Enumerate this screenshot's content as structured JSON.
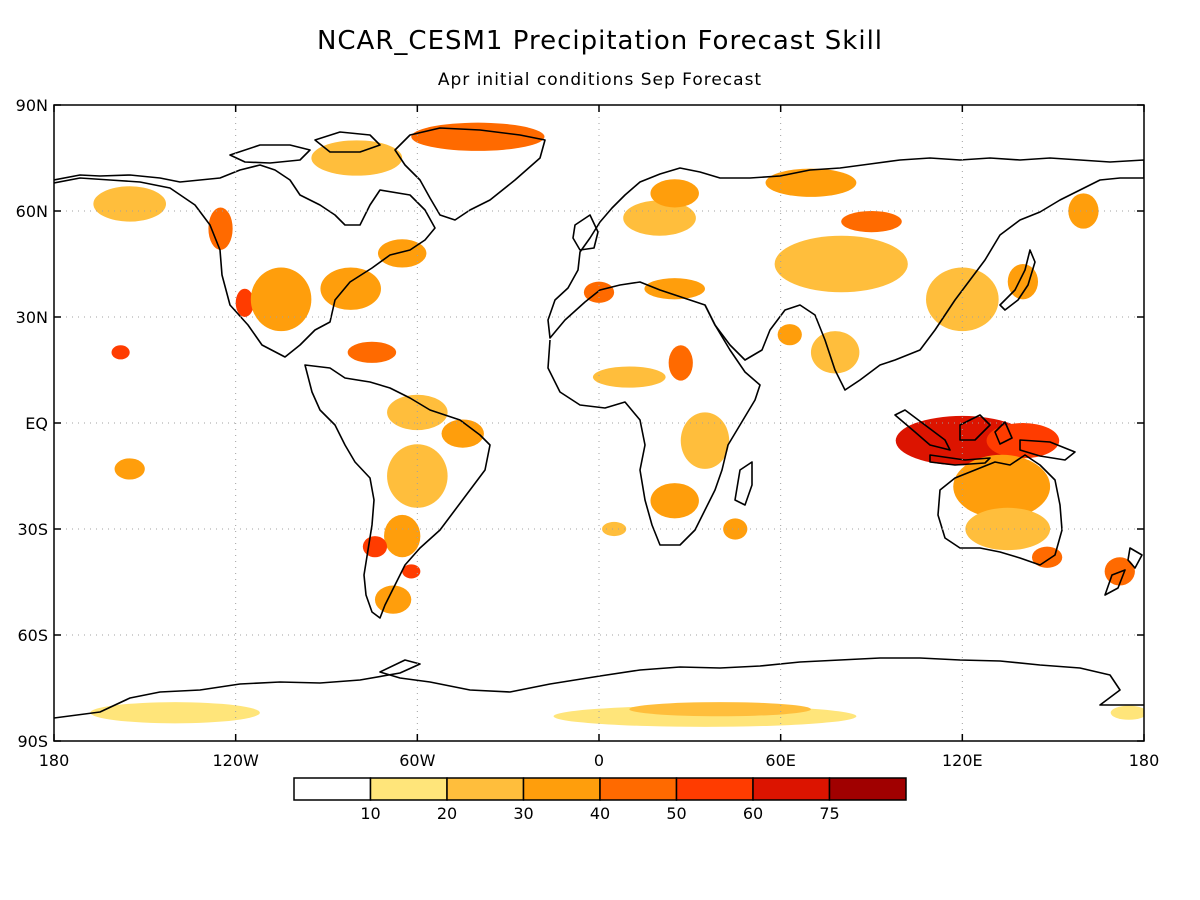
{
  "title": "NCAR_CESM1 Precipitation Forecast Skill",
  "subtitle": "Apr initial conditions  Sep Forecast",
  "map": {
    "lon_range": [
      -180,
      180
    ],
    "lat_range": [
      -90,
      90
    ],
    "grid": "dotted",
    "lat_labels": [
      {
        "lat": 90,
        "text": "90N"
      },
      {
        "lat": 60,
        "text": "60N"
      },
      {
        "lat": 30,
        "text": "30N"
      },
      {
        "lat": 0,
        "text": "EQ"
      },
      {
        "lat": -30,
        "text": "30S"
      },
      {
        "lat": -60,
        "text": "60S"
      },
      {
        "lat": -90,
        "text": "90S"
      }
    ],
    "lon_labels": [
      {
        "lon": -180,
        "text": "180"
      },
      {
        "lon": -120,
        "text": "120W"
      },
      {
        "lon": -60,
        "text": "60W"
      },
      {
        "lon": 0,
        "text": "0"
      },
      {
        "lon": 60,
        "text": "60E"
      },
      {
        "lon": 120,
        "text": "120E"
      },
      {
        "lon": 180,
        "text": "180"
      }
    ]
  },
  "colorbar": {
    "colors": [
      "#ffffff",
      "#ffe57a",
      "#ffbe3c",
      "#ff9e0c",
      "#ff6a00",
      "#ff3c00",
      "#dc1400",
      "#a00000"
    ],
    "labels": [
      "10",
      "20",
      "30",
      "40",
      "50",
      "60",
      "75"
    ]
  },
  "skill_regions": [
    {
      "name": "indonesia-maritime",
      "lon": 120,
      "lat": -5,
      "rx": 22,
      "ry": 7,
      "level": 6
    },
    {
      "name": "new-guinea",
      "lon": 140,
      "lat": -5,
      "rx": 12,
      "ry": 5,
      "level": 5
    },
    {
      "name": "australia-north",
      "lon": 133,
      "lat": -18,
      "rx": 16,
      "ry": 9,
      "level": 3
    },
    {
      "name": "australia-south",
      "lon": 135,
      "lat": -30,
      "rx": 14,
      "ry": 6,
      "level": 2
    },
    {
      "name": "australia-se",
      "lon": 148,
      "lat": -38,
      "rx": 5,
      "ry": 3,
      "level": 4
    },
    {
      "name": "new-zealand",
      "lon": 172,
      "lat": -42,
      "rx": 5,
      "ry": 4,
      "level": 4
    },
    {
      "name": "greenland-north",
      "lon": -40,
      "lat": 81,
      "rx": 22,
      "ry": 4,
      "level": 4
    },
    {
      "name": "canada-arctic",
      "lon": -80,
      "lat": 75,
      "rx": 15,
      "ry": 5,
      "level": 2
    },
    {
      "name": "alaska",
      "lon": -155,
      "lat": 62,
      "rx": 12,
      "ry": 5,
      "level": 2
    },
    {
      "name": "pacific-nw",
      "lon": -125,
      "lat": 55,
      "rx": 4,
      "ry": 6,
      "level": 4
    },
    {
      "name": "california",
      "lon": -117,
      "lat": 34,
      "rx": 3,
      "ry": 4,
      "level": 5
    },
    {
      "name": "north-america-central",
      "lon": -105,
      "lat": 35,
      "rx": 10,
      "ry": 9,
      "level": 3
    },
    {
      "name": "us-east",
      "lon": -82,
      "lat": 38,
      "rx": 10,
      "ry": 6,
      "level": 3
    },
    {
      "name": "canada-east",
      "lon": -65,
      "lat": 48,
      "rx": 8,
      "ry": 4,
      "level": 3
    },
    {
      "name": "hawaii",
      "lon": -158,
      "lat": 20,
      "rx": 3,
      "ry": 2,
      "level": 5
    },
    {
      "name": "caribbean",
      "lon": -75,
      "lat": 20,
      "rx": 8,
      "ry": 3,
      "level": 4
    },
    {
      "name": "amazon-north",
      "lon": -60,
      "lat": 3,
      "rx": 10,
      "ry": 5,
      "level": 2
    },
    {
      "name": "brazil-east",
      "lon": -45,
      "lat": -3,
      "rx": 7,
      "ry": 4,
      "level": 3
    },
    {
      "name": "south-america-central",
      "lon": -60,
      "lat": -15,
      "rx": 10,
      "ry": 9,
      "level": 2
    },
    {
      "name": "argentina",
      "lon": -65,
      "lat": -32,
      "rx": 6,
      "ry": 6,
      "level": 3
    },
    {
      "name": "chile",
      "lon": -74,
      "lat": -35,
      "rx": 4,
      "ry": 3,
      "level": 5
    },
    {
      "name": "patagonia",
      "lon": -68,
      "lat": -50,
      "rx": 6,
      "ry": 4,
      "level": 3
    },
    {
      "name": "south-atlantic",
      "lon": -62,
      "lat": -42,
      "rx": 3,
      "ry": 2,
      "level": 5
    },
    {
      "name": "europe-north",
      "lon": 20,
      "lat": 58,
      "rx": 12,
      "ry": 5,
      "level": 2
    },
    {
      "name": "scandinavia",
      "lon": 25,
      "lat": 65,
      "rx": 8,
      "ry": 4,
      "level": 3
    },
    {
      "name": "iberia",
      "lon": 0,
      "lat": 37,
      "rx": 5,
      "ry": 3,
      "level": 4
    },
    {
      "name": "mediterranean",
      "lon": 25,
      "lat": 38,
      "rx": 10,
      "ry": 3,
      "level": 3
    },
    {
      "name": "sahara-east",
      "lon": 27,
      "lat": 17,
      "rx": 4,
      "ry": 5,
      "level": 4
    },
    {
      "name": "sahel",
      "lon": 10,
      "lat": 13,
      "rx": 12,
      "ry": 3,
      "level": 2
    },
    {
      "name": "east-africa",
      "lon": 35,
      "lat": -5,
      "rx": 8,
      "ry": 8,
      "level": 2
    },
    {
      "name": "southern-africa",
      "lon": 25,
      "lat": -22,
      "rx": 8,
      "ry": 5,
      "level": 3
    },
    {
      "name": "central-asia",
      "lon": 80,
      "lat": 45,
      "rx": 22,
      "ry": 8,
      "level": 2
    },
    {
      "name": "siberia",
      "lon": 90,
      "lat": 57,
      "rx": 10,
      "ry": 3,
      "level": 4
    },
    {
      "name": "russia-north",
      "lon": 70,
      "lat": 68,
      "rx": 15,
      "ry": 4,
      "level": 3
    },
    {
      "name": "east-asia",
      "lon": 120,
      "lat": 35,
      "rx": 12,
      "ry": 9,
      "level": 2
    },
    {
      "name": "japan",
      "lon": 140,
      "lat": 40,
      "rx": 5,
      "ry": 5,
      "level": 3
    },
    {
      "name": "india",
      "lon": 78,
      "lat": 20,
      "rx": 8,
      "ry": 6,
      "level": 2
    },
    {
      "name": "arabian-sea",
      "lon": 63,
      "lat": 25,
      "rx": 4,
      "ry": 3,
      "level": 3
    },
    {
      "name": "kamchatka",
      "lon": 160,
      "lat": 60,
      "rx": 5,
      "ry": 5,
      "level": 3
    },
    {
      "name": "south-pacific",
      "lon": -155,
      "lat": -13,
      "rx": 5,
      "ry": 3,
      "level": 3
    },
    {
      "name": "south-atlantic-ocean",
      "lon": 5,
      "lat": -30,
      "rx": 4,
      "ry": 2,
      "level": 2
    },
    {
      "name": "south-indian-ocean",
      "lon": 45,
      "lat": -30,
      "rx": 4,
      "ry": 3,
      "level": 3
    },
    {
      "name": "antarctica-west",
      "lon": -140,
      "lat": -82,
      "rx": 28,
      "ry": 3,
      "level": 1
    },
    {
      "name": "antarctica-east",
      "lon": 35,
      "lat": -83,
      "rx": 50,
      "ry": 3,
      "level": 1
    },
    {
      "name": "antarctica-east-core",
      "lon": 40,
      "lat": -81,
      "rx": 30,
      "ry": 2,
      "level": 2
    },
    {
      "name": "antarctica-pacific",
      "lon": 175,
      "lat": -82,
      "rx": 6,
      "ry": 2,
      "level": 1
    }
  ]
}
